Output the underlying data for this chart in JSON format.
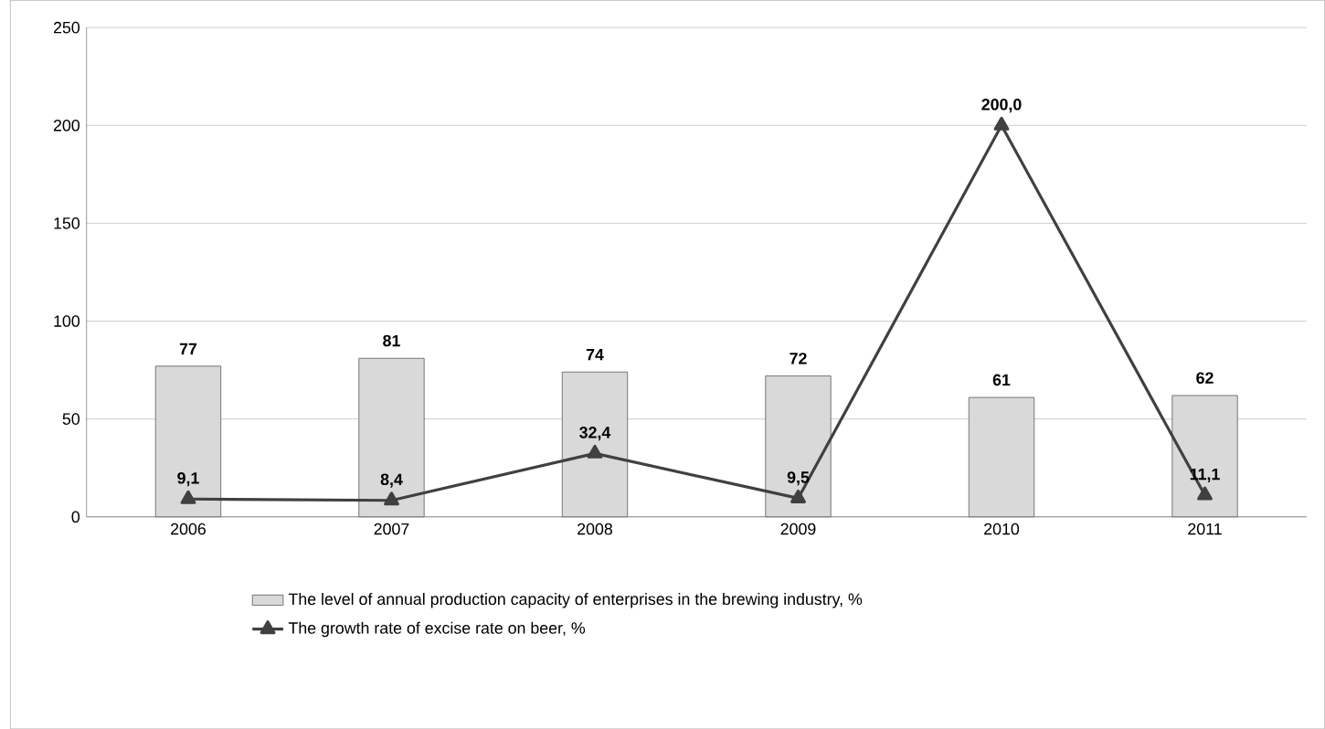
{
  "chart_data": {
    "type": "bar",
    "categories": [
      "2006",
      "2007",
      "2008",
      "2009",
      "2010",
      "2011"
    ],
    "series": [
      {
        "name": "The level of annual production capacity of enterprises in the brewing industry, %",
        "color": "#d9d9d9",
        "values": [
          77,
          81,
          74,
          72,
          61,
          62
        ],
        "value_labels": [
          "77",
          "81",
          "74",
          "72",
          "61",
          "62"
        ]
      },
      {
        "name": "The growth rate of excise rate on beer, %",
        "type": "line",
        "color": "#404040",
        "values": [
          9.1,
          8.4,
          32.4,
          9.5,
          200.0,
          11.1
        ],
        "value_labels": [
          "9,1",
          "8,4",
          "32,4",
          "9,5",
          "200,0",
          "11,1"
        ],
        "marker": "triangle",
        "line_style": "solid"
      }
    ],
    "ylim": [
      0,
      250
    ],
    "yticks": [
      0,
      50,
      100,
      150,
      200,
      250
    ],
    "grid": "y",
    "legend": "bottom"
  }
}
